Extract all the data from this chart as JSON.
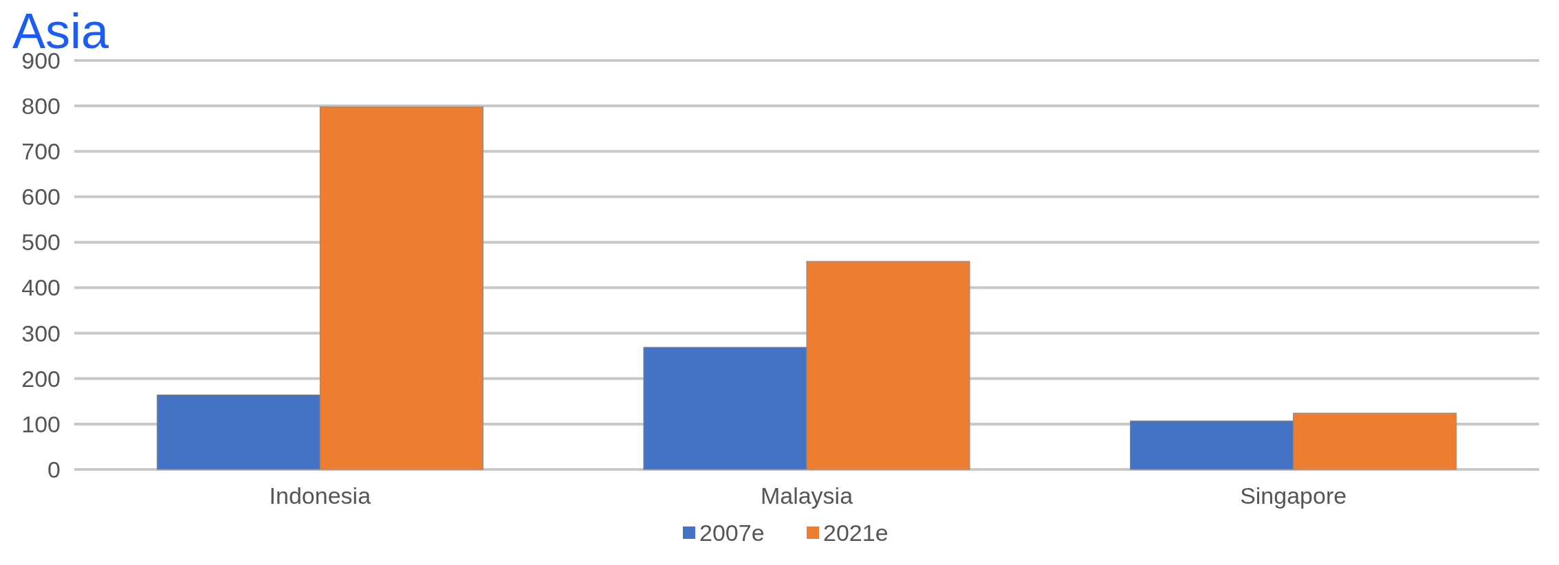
{
  "chart_data": {
    "type": "bar",
    "title": "Asia",
    "categories": [
      "Indonesia",
      "Malaysia",
      "Singapore"
    ],
    "series": [
      {
        "name": "2007e",
        "color": "#4472c4",
        "values": [
          164,
          269,
          107
        ]
      },
      {
        "name": "2021e",
        "color": "#ed7d31",
        "values": [
          798,
          458,
          124
        ]
      }
    ],
    "ylim": [
      0,
      900
    ],
    "yticks": [
      0,
      100,
      200,
      300,
      400,
      500,
      600,
      700,
      800,
      900
    ],
    "grid": "y",
    "legend": "bottom"
  }
}
